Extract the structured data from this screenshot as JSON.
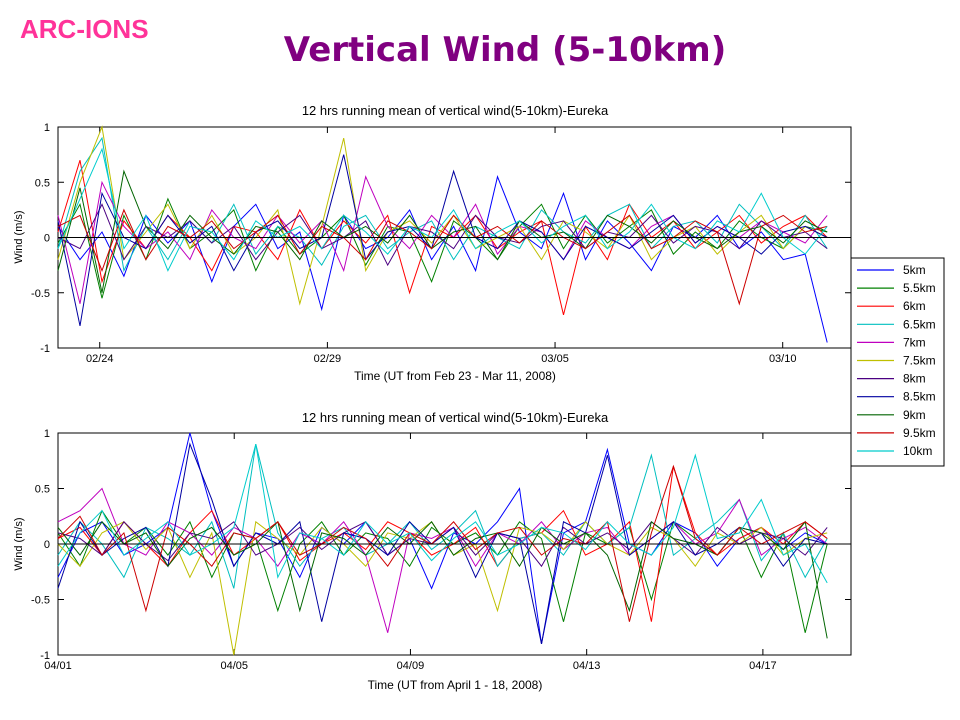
{
  "brand": "ARC-IONS",
  "slide_title": "Vertical Wind (5-10km)",
  "colors": {
    "brand": "#ff3399",
    "title": "#800080",
    "series": [
      "#0000ff",
      "#008000",
      "#ff0000",
      "#00bfbf",
      "#bf00bf",
      "#bfbf00",
      "#4b0082",
      "#0000a0",
      "#006400",
      "#cc0000",
      "#00cccc"
    ]
  },
  "legend": [
    "5km",
    "5.5km",
    "6km",
    "6.5km",
    "7km",
    "7.5km",
    "8km",
    "8.5km",
    "9km",
    "9.5km",
    "10km"
  ],
  "chart_data": [
    {
      "type": "line",
      "title": "12 hrs running mean of vertical wind(5-10km)-Eureka",
      "xlabel": "Time (UT from Feb 23 - Mar 11, 2008)",
      "ylabel": "Wind (m/s)",
      "xlim": [
        "2008-02-23 02:00",
        "2008-03-11 12:00"
      ],
      "ylim": [
        -1,
        1
      ],
      "xticks": [
        {
          "date": "2008-02-24",
          "label": "02/24"
        },
        {
          "date": "2008-02-29",
          "label": "02/29"
        },
        {
          "date": "2008-03-05",
          "label": "03/05"
        },
        {
          "date": "2008-03-10",
          "label": "03/10"
        }
      ],
      "yticks": [
        "1",
        "0.5",
        "0",
        "-0.5",
        "-1"
      ],
      "ytick_values": [
        1,
        0.5,
        0,
        -0.5,
        -1
      ],
      "zero_line": true,
      "note": "11 noisy series (5km to 10km), values mostly within -0.8 to 1 m/s; series values approximated",
      "series": [
        {
          "name": "5km",
          "values": [
            0.1,
            -0.2,
            0.05,
            -0.35,
            0.2,
            -0.05,
            0.15,
            -0.4,
            0.1,
            0.3,
            -0.1,
            0.05,
            -0.65,
            0.2,
            -0.1,
            0.0,
            0.25,
            -0.2,
            0.1,
            -0.3,
            0.55,
            0.05,
            -0.1,
            0.4,
            -0.2,
            0.15,
            -0.05,
            -0.3,
            0.1,
            0.0,
            0.2,
            -0.1,
            0.05,
            -0.2,
            -0.15,
            -0.95
          ]
        },
        {
          "name": "5.5km",
          "values": [
            -0.05,
            0.3,
            -0.55,
            0.2,
            -0.2,
            0.35,
            -0.1,
            0.05,
            0.25,
            -0.3,
            0.1,
            -0.15,
            0.0,
            0.2,
            -0.25,
            0.1,
            0.05,
            -0.4,
            0.15,
            0.0,
            -0.2,
            0.1,
            0.3,
            -0.1,
            0.2,
            -0.05,
            0.1,
            0.25,
            -0.15,
            0.05,
            -0.1,
            0.15,
            0.0,
            -0.1,
            0.1,
            0.05
          ]
        },
        {
          "name": "6km",
          "values": [
            0.05,
            0.7,
            -0.4,
            0.15,
            -0.1,
            0.2,
            0.0,
            -0.3,
            0.1,
            0.05,
            -0.2,
            0.25,
            -0.1,
            0.15,
            -0.05,
            0.2,
            -0.5,
            0.1,
            0.0,
            0.2,
            -0.1,
            0.05,
            0.15,
            -0.7,
            0.1,
            -0.2,
            0.3,
            0.0,
            0.15,
            -0.1,
            0.05,
            0.2,
            -0.05,
            0.1,
            0.2,
            0.0
          ]
        },
        {
          "name": "6.5km",
          "values": [
            -0.1,
            0.6,
            0.9,
            -0.3,
            0.1,
            -0.2,
            0.15,
            -0.05,
            0.3,
            -0.15,
            0.1,
            0.0,
            -0.25,
            0.1,
            0.2,
            -0.1,
            0.05,
            0.15,
            -0.2,
            0.1,
            0.0,
            -0.1,
            0.25,
            0.05,
            -0.05,
            0.2,
            0.3,
            -0.1,
            0.1,
            0.15,
            -0.05,
            0.3,
            0.1,
            -0.1,
            0.2,
            -0.1
          ]
        },
        {
          "name": "7km",
          "values": [
            0.2,
            -0.6,
            0.5,
            0.1,
            -0.1,
            0.05,
            -0.2,
            0.25,
            0.0,
            -0.1,
            0.2,
            -0.05,
            0.15,
            -0.3,
            0.55,
            0.1,
            -0.1,
            0.2,
            0.0,
            0.3,
            -0.15,
            0.1,
            0.05,
            -0.2,
            0.15,
            0.0,
            -0.1,
            0.1,
            0.2,
            -0.05,
            0.1,
            0.0,
            0.15,
            0.05,
            -0.05,
            0.2
          ]
        },
        {
          "name": "7.5km",
          "values": [
            -0.2,
            0.5,
            1.0,
            -0.2,
            0.05,
            0.3,
            -0.1,
            0.2,
            -0.15,
            0.0,
            0.25,
            -0.6,
            0.1,
            0.9,
            -0.3,
            0.05,
            0.15,
            -0.05,
            0.2,
            -0.1,
            0.0,
            0.1,
            -0.2,
            0.15,
            0.05,
            -0.1,
            0.2,
            -0.2,
            0.0,
            0.1,
            -0.15,
            0.05,
            0.2,
            -0.1,
            0.1,
            0.0
          ]
        },
        {
          "name": "8km",
          "values": [
            0.0,
            -0.1,
            0.3,
            -0.2,
            0.1,
            0.0,
            0.15,
            -0.05,
            0.1,
            -0.2,
            0.05,
            0.2,
            -0.1,
            0.0,
            0.15,
            -0.25,
            0.1,
            0.05,
            -0.1,
            0.2,
            0.0,
            -0.05,
            0.1,
            0.15,
            -0.1,
            0.05,
            0.0,
            0.2,
            -0.05,
            0.1,
            0.05,
            -0.1,
            0.15,
            0.0,
            0.05,
            -0.1
          ]
        },
        {
          "name": "8.5km",
          "values": [
            0.15,
            -0.8,
            0.4,
            0.0,
            -0.1,
            0.2,
            -0.05,
            0.1,
            -0.3,
            0.05,
            0.15,
            -0.1,
            0.0,
            0.75,
            -0.2,
            0.05,
            0.1,
            -0.1,
            0.6,
            0.0,
            -0.1,
            0.15,
            0.05,
            -0.2,
            0.1,
            0.0,
            -0.1,
            0.05,
            0.2,
            -0.05,
            0.1,
            0.0,
            -0.15,
            0.05,
            0.1,
            0.0
          ]
        },
        {
          "name": "9km",
          "values": [
            -0.3,
            0.45,
            -0.5,
            0.6,
            0.1,
            -0.1,
            0.2,
            0.0,
            -0.15,
            0.1,
            0.05,
            -0.2,
            0.15,
            0.0,
            0.1,
            -0.05,
            0.2,
            -0.1,
            0.05,
            0.1,
            -0.2,
            0.15,
            0.0,
            0.05,
            -0.1,
            0.2,
            0.1,
            -0.05,
            0.15,
            0.0,
            -0.1,
            0.05,
            0.1,
            -0.05,
            0.15,
            0.05
          ]
        },
        {
          "name": "9.5km",
          "values": [
            0.1,
            0.2,
            -0.3,
            0.25,
            -0.2,
            0.1,
            0.0,
            0.15,
            -0.1,
            0.05,
            0.2,
            -0.15,
            0.1,
            0.0,
            -0.2,
            0.15,
            0.05,
            -0.1,
            0.2,
            0.0,
            0.1,
            -0.05,
            0.15,
            0.0,
            -0.1,
            0.05,
            0.2,
            -0.1,
            0.0,
            0.15,
            0.05,
            -0.6,
            0.1,
            0.2,
            0.05,
            0.1
          ]
        },
        {
          "name": "10km",
          "values": [
            -0.1,
            0.35,
            0.8,
            -0.1,
            0.2,
            -0.3,
            0.1,
            0.05,
            -0.2,
            0.15,
            0.0,
            0.1,
            -0.1,
            0.2,
            0.05,
            -0.15,
            0.1,
            0.0,
            0.25,
            -0.1,
            0.05,
            0.15,
            -0.05,
            0.1,
            0.2,
            -0.1,
            0.05,
            0.3,
            0.0,
            -0.1,
            0.15,
            0.05,
            0.4,
            0.0,
            -0.15,
            0.1
          ]
        }
      ]
    },
    {
      "type": "line",
      "title": "12 hrs running mean of vertical wind(5-10km)-Eureka",
      "xlabel": "Time (UT from April 1 - 18, 2008)",
      "ylabel": "Wind (m/s)",
      "xlim": [
        "2008-04-01",
        "2008-04-19"
      ],
      "ylim": [
        -1,
        1
      ],
      "xticks": [
        {
          "date": "2008-04-01",
          "label": "04/01"
        },
        {
          "date": "2008-04-05",
          "label": "04/05"
        },
        {
          "date": "2008-04-09",
          "label": "04/09"
        },
        {
          "date": "2008-04-13",
          "label": "04/13"
        },
        {
          "date": "2008-04-17",
          "label": "04/17"
        }
      ],
      "yticks": [
        "1",
        "0.5",
        "0",
        "-0.5",
        "-1"
      ],
      "ytick_values": [
        1,
        0.5,
        0,
        -0.5,
        -1
      ],
      "zero_line": true,
      "note": "11 noisy series (5km to 10km), values mostly within -1 to 1 m/s; series values approximated",
      "series": [
        {
          "name": "5km",
          "values": [
            -0.3,
            0.1,
            0.2,
            -0.1,
            0.0,
            0.15,
            1.0,
            0.3,
            -0.2,
            0.1,
            0.05,
            -0.3,
            0.15,
            0.0,
            0.2,
            -0.1,
            0.05,
            -0.4,
            0.1,
            0.0,
            0.2,
            0.5,
            -0.9,
            0.1,
            0.2,
            0.85,
            0.0,
            -0.1,
            0.2,
            0.1,
            -0.2,
            0.05,
            0.15,
            -0.05,
            0.1,
            0.0
          ]
        },
        {
          "name": "5.5km",
          "values": [
            0.1,
            -0.2,
            0.3,
            0.0,
            0.15,
            -0.1,
            0.2,
            -0.3,
            0.1,
            0.05,
            -0.6,
            0.0,
            0.2,
            -0.1,
            0.1,
            0.05,
            -0.2,
            0.15,
            0.0,
            0.1,
            -0.1,
            0.2,
            0.05,
            -0.7,
            0.1,
            0.0,
            0.15,
            -0.5,
            0.2,
            0.05,
            -0.1,
            0.15,
            -0.3,
            0.1,
            -0.8,
            0.0
          ]
        },
        {
          "name": "6km",
          "values": [
            0.05,
            0.15,
            -0.1,
            0.2,
            0.0,
            -0.2,
            0.1,
            0.3,
            -0.1,
            0.05,
            0.2,
            -0.15,
            0.0,
            0.1,
            -0.05,
            0.2,
            0.1,
            -0.1,
            0.0,
            0.15,
            -0.2,
            0.05,
            0.1,
            0.3,
            -0.1,
            0.0,
            0.2,
            -0.7,
            0.7,
            0.1,
            -0.1,
            0.05,
            0.15,
            0.0,
            0.2,
            0.05
          ]
        },
        {
          "name": "6.5km",
          "values": [
            -0.1,
            0.2,
            0.0,
            -0.3,
            0.15,
            0.05,
            -0.1,
            0.2,
            -0.4,
            0.9,
            0.1,
            -0.2,
            0.05,
            0.15,
            -0.1,
            0.0,
            0.2,
            -0.05,
            0.1,
            0.3,
            -0.2,
            0.05,
            0.1,
            -0.1,
            0.2,
            0.0,
            0.15,
            0.8,
            -0.1,
            0.05,
            0.2,
            0.4,
            -0.15,
            0.1,
            -0.3,
            0.05
          ]
        },
        {
          "name": "7km",
          "values": [
            0.2,
            0.3,
            0.5,
            0.0,
            -0.1,
            0.2,
            0.1,
            -0.1,
            0.15,
            0.05,
            -0.2,
            0.1,
            0.0,
            0.2,
            -0.1,
            -0.8,
            0.1,
            0.05,
            0.15,
            -0.2,
            0.1,
            0.0,
            0.2,
            -0.05,
            0.1,
            0.15,
            -0.1,
            0.05,
            0.2,
            0.0,
            0.1,
            0.4,
            -0.1,
            0.05,
            0.15,
            0.0
          ]
        },
        {
          "name": "7.5km",
          "values": [
            0.0,
            -0.2,
            0.1,
            0.2,
            -0.05,
            0.15,
            -0.3,
            0.1,
            -1.0,
            0.2,
            0.05,
            -0.1,
            0.15,
            0.0,
            -0.2,
            0.1,
            0.05,
            0.2,
            -0.1,
            0.0,
            -0.6,
            0.15,
            0.1,
            -0.05,
            0.2,
            0.0,
            -0.1,
            0.15,
            0.05,
            -0.2,
            0.1,
            0.0,
            0.15,
            -0.1,
            0.05,
            0.1
          ]
        },
        {
          "name": "8km",
          "values": [
            0.1,
            0.05,
            -0.1,
            0.2,
            0.0,
            -0.15,
            0.1,
            0.05,
            0.2,
            -0.1,
            0.0,
            0.15,
            -0.05,
            0.1,
            0.2,
            -0.1,
            0.05,
            0.0,
            0.15,
            -0.1,
            0.1,
            0.05,
            -0.2,
            0.15,
            0.0,
            0.1,
            -0.05,
            0.2,
            0.05,
            -0.1,
            0.15,
            0.0,
            0.1,
            0.05,
            -0.1,
            0.15
          ]
        },
        {
          "name": "8.5km",
          "values": [
            -0.4,
            0.2,
            -0.1,
            0.05,
            0.15,
            -0.2,
            0.9,
            0.4,
            -0.2,
            0.1,
            0.0,
            0.2,
            -0.7,
            0.1,
            0.05,
            -0.1,
            0.2,
            0.0,
            0.15,
            -0.3,
            0.1,
            0.05,
            -0.9,
            0.2,
            0.1,
            0.8,
            -0.1,
            0.05,
            0.2,
            -0.1,
            0.0,
            0.15,
            0.1,
            -0.2,
            0.05,
            0.0
          ]
        },
        {
          "name": "9km",
          "values": [
            0.15,
            -0.1,
            0.2,
            0.0,
            0.1,
            -0.2,
            0.05,
            0.15,
            -0.1,
            0.0,
            0.2,
            -0.6,
            0.1,
            0.05,
            -0.1,
            0.15,
            0.0,
            0.2,
            -0.1,
            0.05,
            0.1,
            -0.2,
            0.15,
            0.0,
            0.1,
            -0.1,
            -0.6,
            0.2,
            0.05,
            0.0,
            -0.1,
            0.15,
            0.1,
            -0.05,
            0.2,
            -0.85
          ]
        },
        {
          "name": "9.5km",
          "values": [
            0.05,
            0.25,
            -0.1,
            0.1,
            -0.6,
            0.15,
            0.0,
            -0.2,
            0.1,
            0.05,
            0.2,
            -0.1,
            0.0,
            0.15,
            0.05,
            -0.2,
            0.1,
            0.0,
            0.2,
            -0.05,
            0.1,
            0.15,
            -0.1,
            0.05,
            0.0,
            0.2,
            -0.7,
            0.1,
            0.7,
            0.05,
            -0.1,
            0.15,
            0.0,
            0.1,
            0.2,
            0.05
          ]
        },
        {
          "name": "10km",
          "values": [
            -0.2,
            0.1,
            0.3,
            -0.1,
            0.05,
            0.2,
            -0.1,
            0.0,
            0.15,
            0.9,
            -0.3,
            0.1,
            0.05,
            -0.1,
            0.2,
            0.0,
            0.1,
            -0.15,
            0.05,
            0.2,
            -0.1,
            0.0,
            0.15,
            0.1,
            -0.05,
            0.2,
            0.0,
            -0.1,
            0.15,
            0.8,
            0.05,
            0.1,
            0.4,
            -0.1,
            0.0,
            -0.35
          ]
        }
      ]
    }
  ]
}
